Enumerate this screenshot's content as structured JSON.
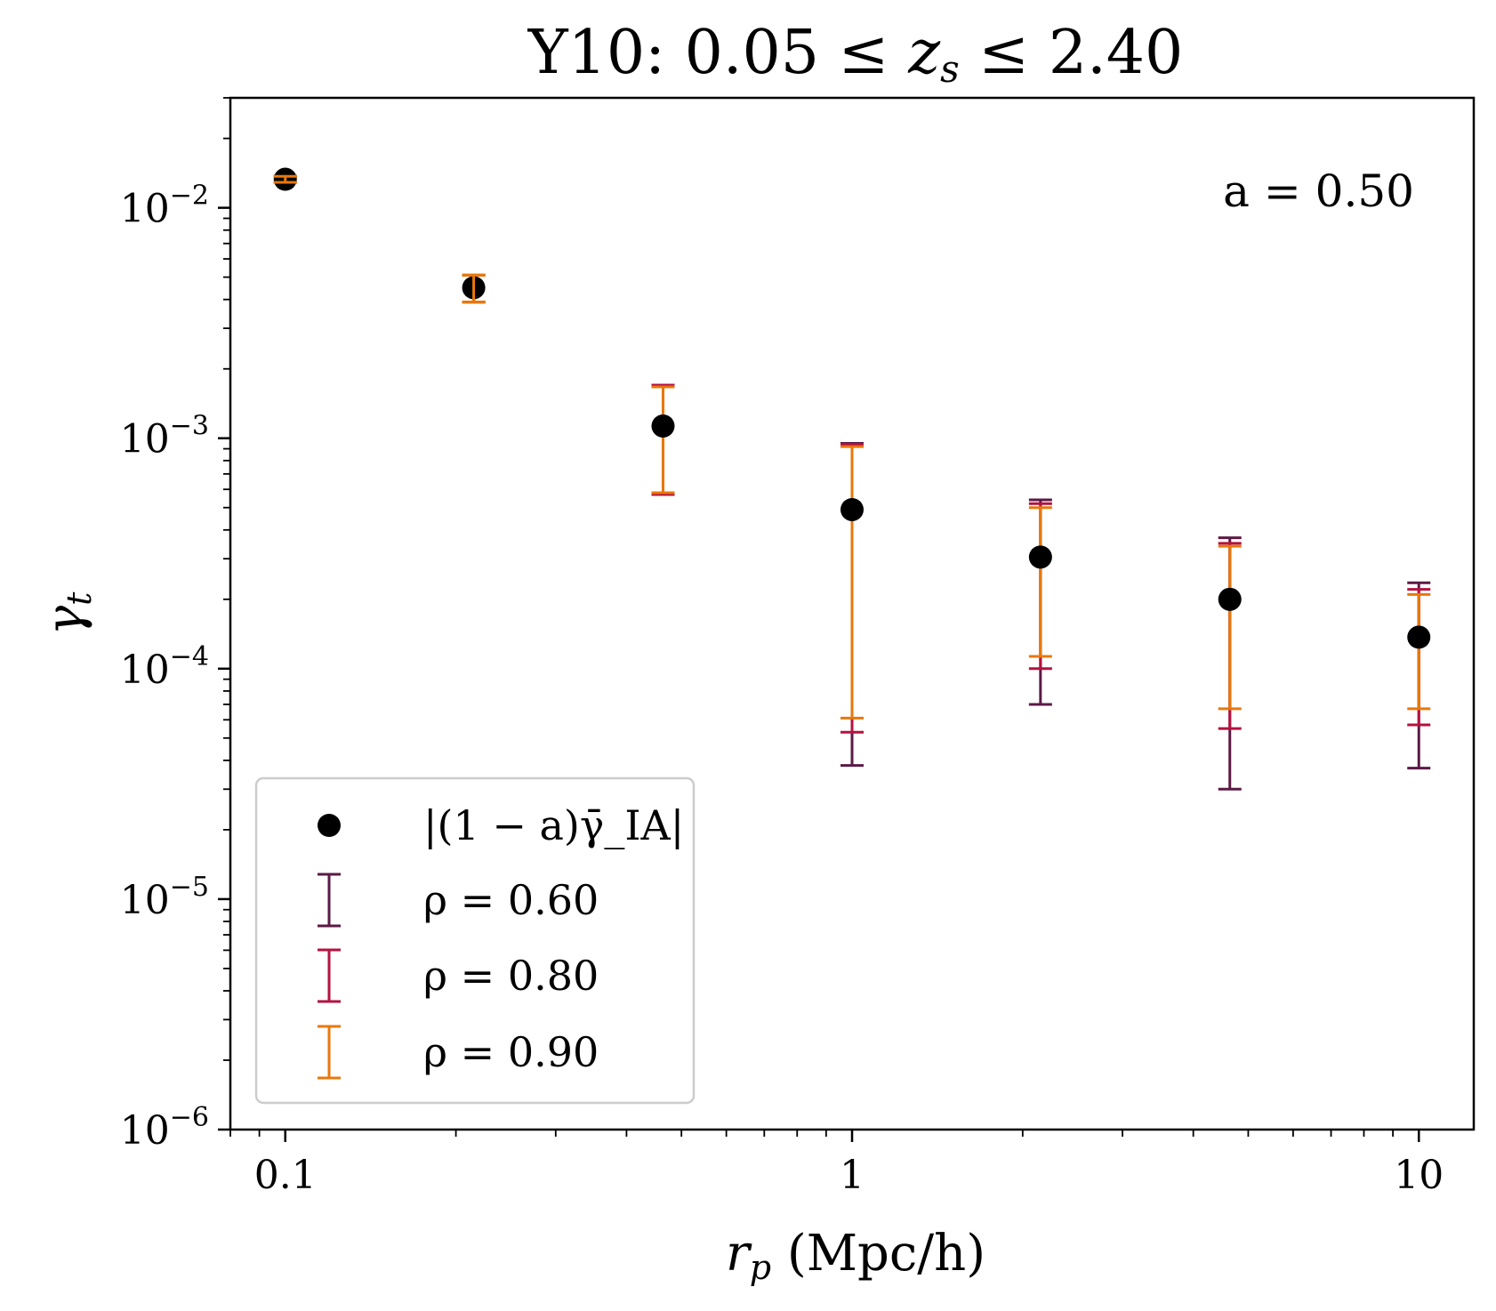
{
  "chart_data": {
    "type": "scatter",
    "title": "Y10: 0.05 ≤ z_s ≤ 2.40",
    "xlabel": "r_p (Mpc/h)",
    "ylabel": "γ_t",
    "xscale": "log",
    "yscale": "log",
    "xlim": [
      0.08,
      12.5
    ],
    "ylim": [
      1e-06,
      0.03
    ],
    "x_ticks": [
      {
        "value": 0.1,
        "label": "0.1"
      },
      {
        "value": 1,
        "label": "1"
      },
      {
        "value": 10,
        "label": "10"
      }
    ],
    "y_ticks": [
      {
        "value": 0.01,
        "base": "10",
        "exp": "−2"
      },
      {
        "value": 0.001,
        "base": "10",
        "exp": "−3"
      },
      {
        "value": 0.0001,
        "base": "10",
        "exp": "−4"
      },
      {
        "value": 1e-05,
        "base": "10",
        "exp": "−5"
      },
      {
        "value": 1e-06,
        "base": "10",
        "exp": "−6"
      }
    ],
    "annotation": "a = 0.50",
    "grid": false,
    "legend_position": "lower-left",
    "x": [
      0.1,
      0.215,
      0.464,
      1.0,
      2.15,
      4.64,
      10.0
    ],
    "series": [
      {
        "name": "|(1 − a)γ̄_IA|",
        "kind": "points",
        "color": "#000000",
        "y": [
          0.0133,
          0.0045,
          0.00113,
          0.00049,
          0.000305,
          0.0002,
          0.000137
        ]
      },
      {
        "name": "ρ = 0.60",
        "kind": "errorbar",
        "color": "#5b1a45",
        "lower": [
          0.0129,
          0.0039,
          0.00057,
          3.8e-05,
          7e-05,
          3e-05,
          3.7e-05
        ],
        "upper": [
          0.0137,
          0.0051,
          0.0017,
          0.00095,
          0.00054,
          0.00037,
          0.000236
        ]
      },
      {
        "name": "ρ = 0.80",
        "kind": "errorbar",
        "color": "#b5123f",
        "lower": [
          0.0129,
          0.0039,
          0.00057,
          5.3e-05,
          0.0001,
          5.5e-05,
          5.7e-05
        ],
        "upper": [
          0.0137,
          0.0051,
          0.0017,
          0.00094,
          0.00052,
          0.00035,
          0.000221
        ]
      },
      {
        "name": "ρ = 0.90",
        "kind": "errorbar",
        "color": "#e8780c",
        "lower": [
          0.0129,
          0.0039,
          0.00058,
          6.1e-05,
          0.000113,
          6.7e-05,
          6.7e-05
        ],
        "upper": [
          0.0137,
          0.0051,
          0.00167,
          0.00092,
          0.0005,
          0.00034,
          0.00021
        ]
      }
    ]
  }
}
